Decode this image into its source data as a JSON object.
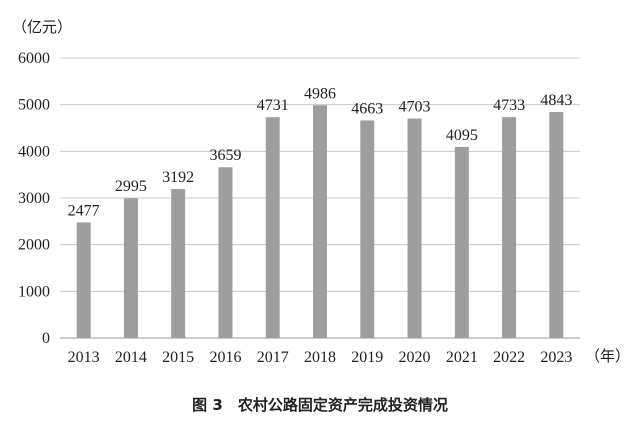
{
  "chart_data": {
    "type": "bar",
    "title": "图 3　农村公路固定资产完成投资情况",
    "ylabel": "（亿元）",
    "xlabel": "（年）",
    "categories": [
      "2013",
      "2014",
      "2015",
      "2016",
      "2017",
      "2018",
      "2019",
      "2020",
      "2021",
      "2022",
      "2023"
    ],
    "values": [
      2477,
      2995,
      3192,
      3659,
      4731,
      4986,
      4663,
      4703,
      4095,
      4733,
      4843
    ],
    "ylim": [
      0,
      6000
    ],
    "yticks": [
      0,
      1000,
      2000,
      3000,
      4000,
      5000,
      6000
    ],
    "grid": true,
    "bar_color": "#9e9e9e",
    "grid_color": "#c8c8c8"
  }
}
